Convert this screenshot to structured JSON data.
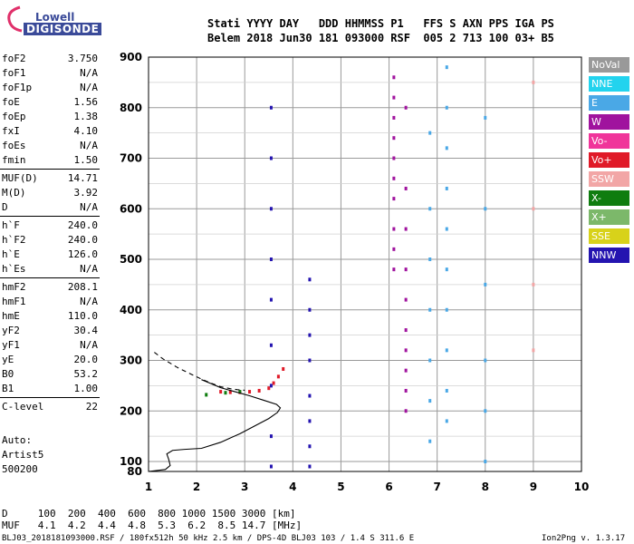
{
  "logo": {
    "line1": "Lowell",
    "line2": "DIGISONDE"
  },
  "header": {
    "labels": "Stati YYYY DAY   DDD HHMMSS P1   FFS S AXN PPS IGA PS",
    "values": "Belem 2018 Jun30 181 093000 RSF  005 2 713 100 03+ B5"
  },
  "params": [
    {
      "name": "foF2",
      "value": "3.750"
    },
    {
      "name": "foF1",
      "value": "N/A"
    },
    {
      "name": "foF1p",
      "value": "N/A"
    },
    {
      "name": "foE",
      "value": "1.56"
    },
    {
      "name": "foEp",
      "value": "1.38"
    },
    {
      "name": "fxI",
      "value": "4.10"
    },
    {
      "name": "foEs",
      "value": "N/A"
    },
    {
      "name": "fmin",
      "value": "1.50"
    },
    {
      "name": "MUF(D)",
      "value": "14.71"
    },
    {
      "name": "M(D)",
      "value": "3.92"
    },
    {
      "name": "D",
      "value": "N/A"
    },
    {
      "name": "h`F",
      "value": "240.0"
    },
    {
      "name": "h`F2",
      "value": "240.0"
    },
    {
      "name": "h`E",
      "value": "126.0"
    },
    {
      "name": "h`Es",
      "value": "N/A"
    },
    {
      "name": "hmF2",
      "value": "208.1"
    },
    {
      "name": "hmF1",
      "value": "N/A"
    },
    {
      "name": "hmE",
      "value": "110.0"
    },
    {
      "name": "yF2",
      "value": "30.4"
    },
    {
      "name": "yF1",
      "value": "N/A"
    },
    {
      "name": "yE",
      "value": "20.0"
    },
    {
      "name": "B0",
      "value": "53.2"
    },
    {
      "name": "B1",
      "value": "1.00"
    },
    {
      "name": "C-level",
      "value": "22"
    }
  ],
  "autoscaling": {
    "line1": "Auto:",
    "line2": "Artist5",
    "line3": "500200"
  },
  "legend": [
    {
      "label": "NoVal",
      "color": "#999999"
    },
    {
      "label": "NNE",
      "color": "#22d3ee"
    },
    {
      "label": "E",
      "color": "#4aa8e6"
    },
    {
      "label": "W",
      "color": "#a0139e"
    },
    {
      "label": "Vo-",
      "color": "#f0359a"
    },
    {
      "label": "Vo+",
      "color": "#e01a28"
    },
    {
      "label": "SSW",
      "color": "#f2a6a6"
    },
    {
      "label": "X-",
      "color": "#0f7d0f"
    },
    {
      "label": "X+",
      "color": "#7cb86a"
    },
    {
      "label": "SSE",
      "color": "#d8d21a"
    },
    {
      "label": "NNW",
      "color": "#2414b0"
    }
  ],
  "footer": {
    "d_row": "D     100  200  400  600  800 1000 1500 3000 [km]",
    "muf_row": "MUF   4.1  4.2  4.4  4.8  5.3  6.2  8.5 14.7 [MHz]",
    "file_info": "BLJ03_2018181093000.RSF / 180fx512h 50 kHz 2.5 km / DPS-4D BLJ03 103 / 1.4 S 311.6 E",
    "version": "Ion2Png v. 1.3.17"
  },
  "chart_data": {
    "type": "scatter",
    "title": "",
    "xlabel": "",
    "ylabel": "",
    "xlim": [
      1,
      10
    ],
    "ylim": [
      80,
      900
    ],
    "x_ticks": [
      "1",
      "2",
      "3",
      "4",
      "5",
      "6",
      "7",
      "8",
      "9",
      "10"
    ],
    "y_ticks": [
      "80",
      "100",
      "200",
      "300",
      "400",
      "500",
      "600",
      "700",
      "800",
      "900"
    ],
    "grid": true,
    "profile": {
      "x": [
        1.0,
        1.35,
        1.45,
        1.42,
        1.38,
        1.5,
        1.75,
        2.1,
        2.5,
        2.9,
        3.2,
        3.5,
        3.68,
        3.74,
        3.66,
        3.4,
        3.1,
        2.8,
        2.5,
        2.3,
        2.1
      ],
      "y": [
        80,
        84,
        92,
        104,
        115,
        122,
        124,
        126,
        138,
        155,
        170,
        185,
        197,
        206,
        213,
        221,
        230,
        238,
        246,
        254,
        262
      ]
    },
    "profile_dashed": {
      "x": [
        1.12,
        1.3,
        1.6,
        1.9,
        2.1,
        2.3,
        2.5,
        2.7,
        2.85,
        3.0
      ],
      "y": [
        316,
        303,
        286,
        272,
        263,
        255,
        248,
        244,
        242,
        241
      ]
    },
    "traces": [
      {
        "series": "Vo+",
        "x": [
          2.5,
          2.7,
          2.9,
          3.1,
          3.3,
          3.5,
          3.6,
          3.7,
          3.8
        ],
        "y": [
          238,
          237,
          237,
          238,
          240,
          245,
          255,
          268,
          283
        ]
      },
      {
        "series": "W",
        "x": [
          6.1,
          6.1,
          6.1,
          6.1,
          6.1,
          6.1,
          6.1,
          6.1,
          6.1,
          6.1
        ],
        "y": [
          480,
          520,
          560,
          620,
          660,
          700,
          740,
          780,
          820,
          860
        ]
      },
      {
        "series": "W",
        "x": [
          6.35,
          6.35,
          6.35,
          6.35,
          6.35,
          6.35,
          6.35,
          6.35,
          6.35,
          6.35
        ],
        "y": [
          200,
          240,
          280,
          320,
          360,
          420,
          480,
          560,
          640,
          800
        ]
      },
      {
        "series": "NNW",
        "x": [
          4.35,
          4.35,
          4.35,
          4.35,
          4.35,
          4.35,
          4.35,
          4.35
        ],
        "y": [
          90,
          130,
          180,
          230,
          300,
          350,
          400,
          460
        ]
      },
      {
        "series": "NNW",
        "x": [
          3.55,
          3.55,
          3.55,
          3.55,
          3.55,
          3.55,
          3.55,
          3.55,
          3.55
        ],
        "y": [
          90,
          150,
          250,
          330,
          420,
          500,
          600,
          700,
          800
        ]
      },
      {
        "series": "E",
        "x": [
          7.2,
          7.2,
          7.2,
          7.2,
          7.2,
          7.2,
          7.2,
          7.2,
          7.2,
          7.2
        ],
        "y": [
          180,
          240,
          320,
          400,
          480,
          560,
          640,
          720,
          800,
          880
        ]
      },
      {
        "series": "E",
        "x": [
          6.85,
          6.85,
          6.85,
          6.85,
          6.85,
          6.85,
          6.85
        ],
        "y": [
          140,
          220,
          300,
          400,
          500,
          600,
          750
        ]
      },
      {
        "series": "E",
        "x": [
          8.0,
          8.0,
          8.0,
          8.0,
          8.0,
          8.0
        ],
        "y": [
          100,
          200,
          300,
          450,
          600,
          780
        ]
      },
      {
        "series": "SSW",
        "x": [
          9.0,
          9.0,
          9.0,
          9.0
        ],
        "y": [
          320,
          450,
          600,
          850
        ]
      },
      {
        "series": "X-",
        "x": [
          2.2,
          2.6,
          2.9
        ],
        "y": [
          232,
          236,
          238
        ]
      }
    ]
  }
}
